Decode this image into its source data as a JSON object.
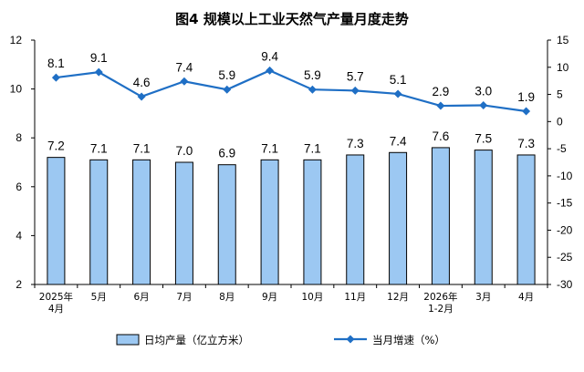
{
  "chart_data": {
    "type": "bar+line",
    "title": "图4  规模以上工业天然气产量月度走势",
    "categories": [
      [
        "2025年",
        "4月"
      ],
      [
        "5月"
      ],
      [
        "6月"
      ],
      [
        "7月"
      ],
      [
        "8月"
      ],
      [
        "9月"
      ],
      [
        "10月"
      ],
      [
        "11月"
      ],
      [
        "12月"
      ],
      [
        "2026年",
        "1-2月"
      ],
      [
        "3月"
      ],
      [
        "4月"
      ]
    ],
    "series": [
      {
        "name": "日均产量（亿立方米）",
        "type": "bar",
        "axis": "left",
        "color": "#9cc8f2",
        "values": [
          7.2,
          7.1,
          7.1,
          7.0,
          6.9,
          7.1,
          7.1,
          7.3,
          7.4,
          7.6,
          7.5,
          7.3
        ],
        "labels": [
          "7.2",
          "7.1",
          "7.1",
          "7.0",
          "6.9",
          "7.1",
          "7.1",
          "7.3",
          "7.4",
          "7.6",
          "7.5",
          "7.3"
        ]
      },
      {
        "name": "当月增速（%）",
        "type": "line",
        "axis": "right",
        "color": "#1f6fc5",
        "values": [
          8.1,
          9.1,
          4.6,
          7.4,
          5.9,
          9.4,
          5.9,
          5.7,
          5.1,
          2.9,
          3.0,
          1.9
        ],
        "labels": [
          "8.1",
          "9.1",
          "4.6",
          "7.4",
          "5.9",
          "9.4",
          "5.9",
          "5.7",
          "5.1",
          "2.9",
          "3.0",
          "1.9"
        ]
      }
    ],
    "y_left": {
      "range": [
        2,
        12
      ],
      "ticks": [
        "2",
        "4",
        "6",
        "8",
        "10",
        "12"
      ]
    },
    "y_right": {
      "range": [
        -30,
        15
      ],
      "ticks": [
        "-30",
        "-25",
        "-20",
        "-15",
        "-10",
        "-5",
        "0",
        "5",
        "10",
        "15"
      ]
    },
    "grid": false,
    "legend_position": "bottom"
  }
}
